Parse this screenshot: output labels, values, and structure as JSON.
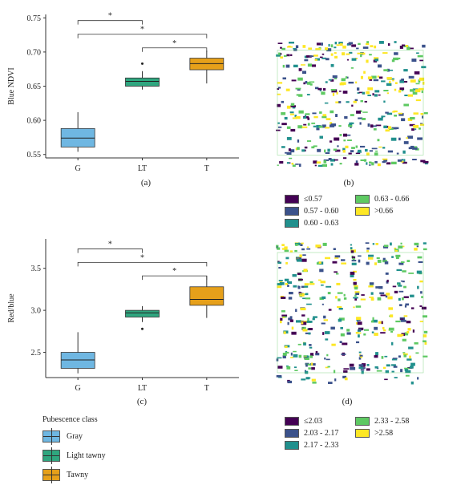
{
  "colors": {
    "gray": "#6fb7e2",
    "light_tawny": "#2fa67f",
    "tawny": "#e6a01a",
    "viridis": [
      "#440154",
      "#3b528b",
      "#21908d",
      "#5ec962",
      "#fde725"
    ]
  },
  "panels": {
    "a": "(a)",
    "b": "(b)",
    "c": "(c)",
    "d": "(d)"
  },
  "chart_data": [
    {
      "type": "box",
      "id": "a",
      "ylabel": "Blue NDVI",
      "categories": [
        "G",
        "LT",
        "T"
      ],
      "ylim": [
        0.545,
        0.755
      ],
      "yticks": [
        "0.55",
        "0.60",
        "0.65",
        "0.70",
        "0.75"
      ],
      "ytick_values": [
        0.55,
        0.6,
        0.65,
        0.7,
        0.75
      ],
      "boxes": [
        {
          "whisker_low": 0.554,
          "q1": 0.561,
          "median": 0.574,
          "q3": 0.588,
          "whisker_high": 0.612,
          "outliers": []
        },
        {
          "whisker_low": 0.645,
          "q1": 0.65,
          "median": 0.657,
          "q3": 0.662,
          "whisker_high": 0.672,
          "outliers": [
            0.683
          ]
        },
        {
          "whisker_low": 0.654,
          "q1": 0.674,
          "median": 0.683,
          "q3": 0.691,
          "whisker_high": 0.702,
          "outliers": []
        }
      ],
      "significance": [
        {
          "from": 0,
          "to": 1,
          "label": "*",
          "y": 0.746
        },
        {
          "from": 0,
          "to": 2,
          "label": "*",
          "y": 0.726
        },
        {
          "from": 1,
          "to": 2,
          "label": "*",
          "y": 0.706
        }
      ]
    },
    {
      "type": "box",
      "id": "c",
      "ylabel": "Red/blue",
      "categories": [
        "G",
        "LT",
        "T"
      ],
      "ylim": [
        2.2,
        3.85
      ],
      "yticks": [
        "2.5",
        "3.0",
        "3.5"
      ],
      "ytick_values": [
        2.5,
        3.0,
        3.5
      ],
      "boxes": [
        {
          "whisker_low": 2.25,
          "q1": 2.31,
          "median": 2.41,
          "q3": 2.5,
          "whisker_high": 2.74,
          "outliers": []
        },
        {
          "whisker_low": 2.86,
          "q1": 2.92,
          "median": 2.97,
          "q3": 3.0,
          "whisker_high": 3.05,
          "outliers": [
            2.78
          ]
        },
        {
          "whisker_low": 2.91,
          "q1": 3.06,
          "median": 3.13,
          "q3": 3.28,
          "whisker_high": 3.41,
          "outliers": []
        }
      ],
      "significance": [
        {
          "from": 0,
          "to": 1,
          "label": "*",
          "y": 3.73
        },
        {
          "from": 0,
          "to": 2,
          "label": "*",
          "y": 3.57
        },
        {
          "from": 1,
          "to": 2,
          "label": "*",
          "y": 3.41
        }
      ]
    }
  ],
  "maps": {
    "b": {
      "legend": [
        "≤0.57",
        "0.57 - 0.60",
        "0.60 - 0.63",
        "0.63 - 0.66",
        ">0.66"
      ]
    },
    "d": {
      "legend": [
        "≤2.03",
        "2.03 - 2.17",
        "2.17 - 2.33",
        "2.33 - 2.58",
        ">2.58"
      ]
    }
  },
  "pubescence_legend": {
    "title": "Pubescence class",
    "items": [
      "Gray",
      "Light tawny",
      "Tawny"
    ]
  }
}
